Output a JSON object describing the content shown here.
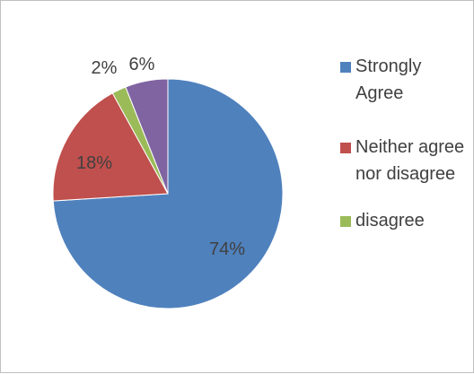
{
  "chart_data": {
    "type": "pie",
    "title": "",
    "series": [
      {
        "name": "Strongly Agree",
        "label": "74%",
        "value": 74,
        "color": "#4F81BD"
      },
      {
        "name": "Neither agree nor disagree",
        "label": "18%",
        "value": 18,
        "color": "#C0504D"
      },
      {
        "name": "disagree",
        "label": "2%",
        "value": 2,
        "color": "#9BBB59"
      },
      {
        "name": "",
        "label": "6%",
        "value": 6,
        "color": "#8064A2"
      }
    ],
    "legend_position": "right",
    "legend_entries": [
      "Strongly Agree",
      "Neither agree nor disagree",
      "disagree"
    ]
  }
}
